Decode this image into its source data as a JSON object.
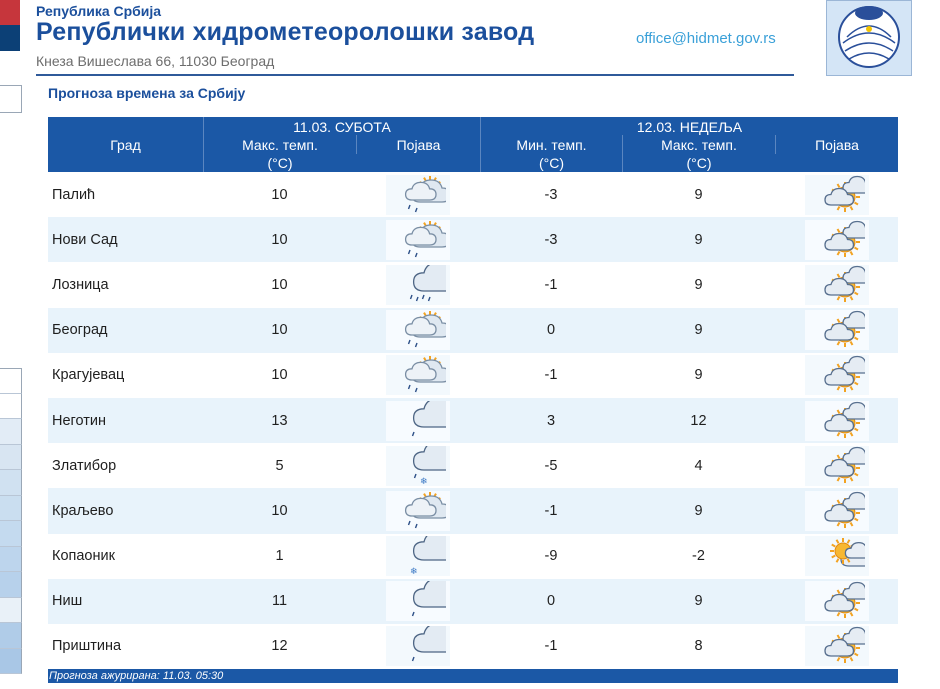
{
  "header": {
    "country": "Република Србија",
    "institute": "Републички хидрометеоролошки завод",
    "address": "Кнеза Вишеслава 66, 11030  Београд",
    "email": "office@hidmet.gov.rs"
  },
  "page": {
    "subtitle": "Прогноза времена за Србију"
  },
  "table": {
    "day1": "11.03. СУБОТА",
    "day2": "12.03. НЕДЕЉА",
    "columns": {
      "city": "Град",
      "max1": "Макс. темп.",
      "max1_unit": "(°C)",
      "phen1": "Појава",
      "min2": "Мин. темп.",
      "min2_unit": "(°C)",
      "max2": "Макс. темп.",
      "max2_unit": "(°C)",
      "phen2": "Појава"
    },
    "rows": [
      {
        "city": "Палић",
        "max1": "10",
        "icon1": "partly-cloudy-light-rain-icon",
        "min2": "-3",
        "max2": "9",
        "icon2": "sun-cloud-icon"
      },
      {
        "city": "Нови Сад",
        "max1": "10",
        "icon1": "partly-cloudy-light-rain-icon",
        "min2": "-3",
        "max2": "9",
        "icon2": "sun-cloud-icon"
      },
      {
        "city": "Лозница",
        "max1": "10",
        "icon1": "cloud-rain-icon",
        "min2": "-1",
        "max2": "9",
        "icon2": "sun-cloud-icon"
      },
      {
        "city": "Београд",
        "max1": "10",
        "icon1": "partly-cloudy-light-rain-icon",
        "min2": "0",
        "max2": "9",
        "icon2": "sun-cloud-icon"
      },
      {
        "city": "Крагујевац",
        "max1": "10",
        "icon1": "partly-cloudy-light-rain-icon",
        "min2": "-1",
        "max2": "9",
        "icon2": "sun-cloud-icon"
      },
      {
        "city": "Неготин",
        "max1": "13",
        "icon1": "cloud-light-rain-icon",
        "min2": "3",
        "max2": "12",
        "icon2": "sun-cloud-icon"
      },
      {
        "city": "Златибор",
        "max1": "5",
        "icon1": "cloud-rain-snow-icon",
        "min2": "-5",
        "max2": "4",
        "icon2": "sun-cloud-icon"
      },
      {
        "city": "Краљево",
        "max1": "10",
        "icon1": "partly-cloudy-light-rain-icon",
        "min2": "-1",
        "max2": "9",
        "icon2": "sun-cloud-icon"
      },
      {
        "city": "Копаоник",
        "max1": "1",
        "icon1": "cloud-snow-icon",
        "min2": "-9",
        "max2": "-2",
        "icon2": "cloud-sun-icon"
      },
      {
        "city": "Ниш",
        "max1": "11",
        "icon1": "cloud-light-rain-icon",
        "min2": "0",
        "max2": "9",
        "icon2": "sun-cloud-icon"
      },
      {
        "city": "Приштина",
        "max1": "12",
        "icon1": "cloud-light-rain-icon",
        "min2": "-1",
        "max2": "8",
        "icon2": "sun-cloud-icon"
      }
    ]
  },
  "footer": {
    "updated": "Прогноза ажурирана:  11.03. 05:30"
  },
  "colors": {
    "brand": "#1b4f9c",
    "header_bg": "#1b58a6",
    "row_alt": "#e8f3fb",
    "link": "#3aa0d8",
    "sun": "#f3a321"
  }
}
